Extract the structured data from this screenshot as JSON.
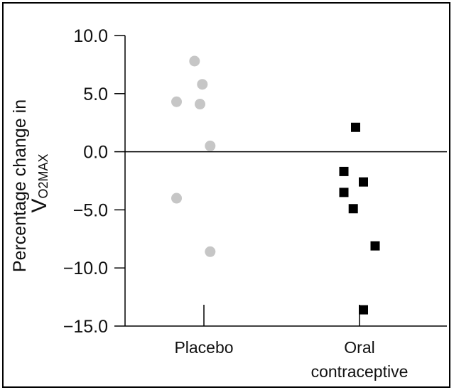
{
  "chart_data": {
    "type": "scatter",
    "title": "",
    "ylabel": {
      "line1": "Percentage change in",
      "line2_prefix": "V",
      "line2_subscript_o": "O",
      "line2_subscript_2": "2",
      "line2_subscript_max": "MAX"
    },
    "xlabel": "",
    "ylim": [
      -15.0,
      10.0
    ],
    "yticks": [
      10.0,
      5.0,
      0.0,
      -5.0,
      -10.0,
      -15.0
    ],
    "ytick_labels": [
      "10.0",
      "5.0",
      "0.0",
      "−5.0",
      "−10.0",
      "−15.0"
    ],
    "categories": [
      {
        "lines": [
          "Placebo"
        ]
      },
      {
        "lines": [
          "Oral",
          "contraceptive"
        ]
      }
    ],
    "reference_line": 0.0,
    "grid": false,
    "legend": "none",
    "series": [
      {
        "category_index": 0,
        "marker": "circle",
        "color": "#c6c6c6",
        "points": [
          {
            "offset": -0.12,
            "y": 7.8
          },
          {
            "offset": -0.02,
            "y": 5.8
          },
          {
            "offset": -0.35,
            "y": 4.3
          },
          {
            "offset": -0.05,
            "y": 4.1
          },
          {
            "offset": 0.08,
            "y": 0.5
          },
          {
            "offset": -0.35,
            "y": -4.0
          },
          {
            "offset": 0.08,
            "y": -8.6
          }
        ]
      },
      {
        "category_index": 1,
        "marker": "square",
        "color": "#000000",
        "points": [
          {
            "offset": -0.05,
            "y": 2.1
          },
          {
            "offset": -0.2,
            "y": -1.7
          },
          {
            "offset": 0.05,
            "y": -2.6
          },
          {
            "offset": -0.2,
            "y": -3.5
          },
          {
            "offset": -0.08,
            "y": -4.9
          },
          {
            "offset": 0.2,
            "y": -8.1
          },
          {
            "offset": 0.05,
            "y": -13.6
          }
        ]
      }
    ]
  }
}
